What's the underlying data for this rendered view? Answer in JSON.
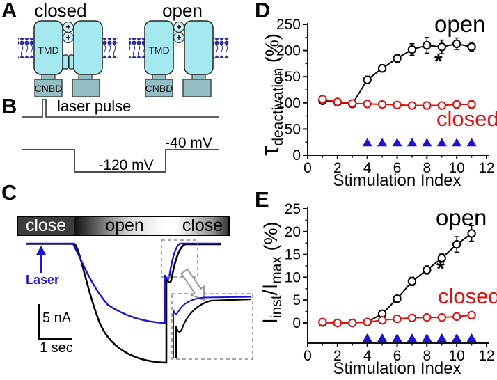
{
  "panel_labels": {
    "a": "A",
    "b": "B",
    "c": "C",
    "d": "D",
    "e": "E"
  },
  "panel_a": {
    "closed_title": "closed",
    "open_title": "open",
    "tmd": "TMD",
    "cnbd": "CNBD",
    "plus": "+",
    "colors": {
      "tmd_fill": "#a5e9f0",
      "cnbd_fill": "#93bfc4",
      "membrane": "#2b2f96"
    }
  },
  "panel_b": {
    "laser_pulse": "laser pulse",
    "hold_voltage": "-120 mV",
    "tail_voltage": "-40 mV"
  },
  "panel_c": {
    "bar": {
      "seg1": "close",
      "seg2": "open",
      "seg3": "close"
    },
    "laser": "Laser",
    "scale_vertical": "5 nA",
    "scale_horizontal": "1 sec",
    "colors": {
      "blue_trace": "#1b13d6",
      "black_trace": "#000000"
    }
  },
  "chart_data": [
    {
      "id": "D",
      "type": "line",
      "xlabel": "Stimulation Index",
      "ylabel_parts": {
        "main": "τ",
        "sub": "deactivation",
        "rest": " (%)"
      },
      "xlim": [
        0,
        12
      ],
      "ylim": [
        0,
        250
      ],
      "xticks": [
        0,
        2,
        4,
        6,
        8,
        10,
        12
      ],
      "yticks": [
        0,
        50,
        100,
        150,
        200,
        250
      ],
      "x": [
        1,
        2,
        3,
        4,
        5,
        6,
        7,
        8,
        9,
        10,
        11
      ],
      "series": [
        {
          "name": "open",
          "color": "#000000",
          "values": [
            104,
            101,
            98,
            144,
            166,
            185,
            202,
            210,
            207,
            213,
            207
          ],
          "errors": [
            5,
            4,
            4,
            7,
            7,
            8,
            11,
            15,
            13,
            11,
            9
          ]
        },
        {
          "name": "closed",
          "color": "#dd1111",
          "values": [
            107,
            102,
            99,
            98,
            97,
            96,
            95,
            95,
            95,
            97,
            97
          ],
          "errors": [
            4,
            3,
            3,
            4,
            4,
            4,
            4,
            4,
            5,
            7,
            8
          ]
        }
      ],
      "open_label": "open",
      "closed_label": "closed",
      "asterisk": "*",
      "triangles": {
        "x": [
          4,
          5,
          6,
          7,
          8,
          9,
          10,
          11
        ],
        "y": 25,
        "color": "#1b13d6"
      },
      "legend_position": "labels-in-plot",
      "grid": false
    },
    {
      "id": "E",
      "type": "line",
      "xlabel": "Stimulation Index",
      "ylabel_parts": {
        "main": "I",
        "sub": "inst",
        "mid": "/I",
        "sub2": "max",
        "rest": " (%)"
      },
      "xlim": [
        0,
        12
      ],
      "ylim": [
        -4.5,
        25
      ],
      "xticks": [
        0,
        2,
        4,
        6,
        8,
        10,
        12
      ],
      "yticks": [
        0,
        5,
        10,
        15,
        20,
        25
      ],
      "x": [
        1,
        2,
        3,
        4,
        5,
        6,
        7,
        8,
        9,
        10,
        11
      ],
      "series": [
        {
          "name": "open",
          "color": "#000000",
          "values": [
            0.1,
            0,
            0,
            0.2,
            2.0,
            5.3,
            9.1,
            11.6,
            14.2,
            17.2,
            19.6
          ],
          "errors": [
            0.4,
            0.3,
            0.3,
            0.5,
            0.5,
            0.6,
            0.9,
            0.9,
            0.9,
            1.7,
            1.7
          ]
        },
        {
          "name": "closed",
          "color": "#dd1111",
          "values": [
            0.2,
            0,
            0,
            0.2,
            0.6,
            0.9,
            1.1,
            1.2,
            1.2,
            1.4,
            1.7
          ],
          "errors": [
            0.3,
            0.2,
            0.2,
            0.3,
            0.3,
            0.3,
            0.3,
            0.3,
            0.3,
            0.4,
            0.4
          ]
        }
      ],
      "open_label": "open",
      "closed_label": "closed",
      "asterisk": "*",
      "triangles": {
        "x": [
          4,
          5,
          6,
          7,
          8,
          9,
          10,
          11
        ],
        "y": -3.2,
        "color": "#1b13d6"
      },
      "legend_position": "labels-in-plot",
      "grid": false
    }
  ]
}
